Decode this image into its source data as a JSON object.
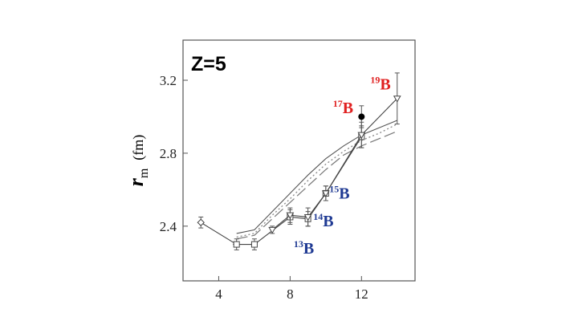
{
  "chart_data": {
    "type": "line",
    "panel_label": "Z=5",
    "ylabel": {
      "symbol": "r",
      "subscript": "m",
      "unit": "(fm)"
    },
    "xlim": [
      2,
      15
    ],
    "ylim": [
      2.1,
      3.42
    ],
    "xticks": [
      4,
      8,
      12
    ],
    "yticks": [
      2.4,
      2.8,
      3.2
    ],
    "grid": false,
    "series": [
      {
        "marker": "diamond",
        "points": [
          {
            "x": 3,
            "y": 2.42,
            "err": 0.03
          },
          {
            "x": 5,
            "y": 2.3
          }
        ]
      },
      {
        "marker": "square",
        "points": [
          {
            "x": 5,
            "y": 2.3,
            "err": 0.03
          },
          {
            "x": 6,
            "y": 2.3,
            "err": 0.03
          },
          {
            "x": 8,
            "y": 2.45,
            "err": 0.04
          },
          {
            "x": 9,
            "y": 2.44,
            "err": 0.04
          },
          {
            "x": 10,
            "y": 2.58,
            "err": 0.04
          },
          {
            "x": 12,
            "y": 2.89,
            "err": 0.06
          }
        ]
      },
      {
        "marker": "triangle",
        "points": [
          {
            "x": 7,
            "y": 2.38,
            "err": 0.02
          },
          {
            "x": 8,
            "y": 2.46,
            "err": 0.04
          },
          {
            "x": 9,
            "y": 2.45,
            "err": 0.05
          },
          {
            "x": 10,
            "y": 2.58,
            "err": 0.04
          },
          {
            "x": 12,
            "y": 2.9,
            "err": 0.07
          },
          {
            "x": 14,
            "y": 3.1,
            "err": 0.14
          }
        ]
      },
      {
        "marker": "filled-circle",
        "points": [
          {
            "x": 12,
            "y": 3.0,
            "err": 0.06
          }
        ]
      },
      {
        "style": "solid-theory",
        "points": [
          {
            "x": 5,
            "y": 2.36
          },
          {
            "x": 6,
            "y": 2.38
          },
          {
            "x": 7,
            "y": 2.48
          },
          {
            "x": 8,
            "y": 2.58
          },
          {
            "x": 9,
            "y": 2.68
          },
          {
            "x": 10,
            "y": 2.77
          },
          {
            "x": 11,
            "y": 2.84
          },
          {
            "x": 12,
            "y": 2.9
          },
          {
            "x": 13,
            "y": 2.94
          },
          {
            "x": 14,
            "y": 2.98
          }
        ]
      },
      {
        "style": "dashed-theory",
        "points": [
          {
            "x": 5,
            "y": 2.33
          },
          {
            "x": 6,
            "y": 2.35
          },
          {
            "x": 7,
            "y": 2.44
          },
          {
            "x": 8,
            "y": 2.53
          },
          {
            "x": 9,
            "y": 2.62
          },
          {
            "x": 10,
            "y": 2.71
          },
          {
            "x": 11,
            "y": 2.79
          },
          {
            "x": 12,
            "y": 2.84
          },
          {
            "x": 13,
            "y": 2.88
          },
          {
            "x": 14,
            "y": 2.92
          }
        ]
      },
      {
        "style": "dotted-theory",
        "points": [
          {
            "x": 5,
            "y": 2.34
          },
          {
            "x": 6,
            "y": 2.36
          },
          {
            "x": 7,
            "y": 2.46
          },
          {
            "x": 8,
            "y": 2.55
          },
          {
            "x": 9,
            "y": 2.65
          },
          {
            "x": 10,
            "y": 2.74
          },
          {
            "x": 11,
            "y": 2.81
          },
          {
            "x": 12,
            "y": 2.87
          },
          {
            "x": 13,
            "y": 2.91
          },
          {
            "x": 14,
            "y": 2.96
          }
        ]
      }
    ],
    "annotations": [
      {
        "mass": "13",
        "symbol": "B",
        "color": "#1f3a93",
        "x": 8.2,
        "y": 2.25
      },
      {
        "mass": "14",
        "symbol": "B",
        "color": "#1f3a93",
        "x": 9.3,
        "y": 2.4
      },
      {
        "mass": "15",
        "symbol": "B",
        "color": "#1f3a93",
        "x": 10.2,
        "y": 2.55
      },
      {
        "mass": "17",
        "symbol": "B",
        "color": "#e02020",
        "x": 10.4,
        "y": 3.02
      },
      {
        "mass": "19",
        "symbol": "B",
        "color": "#e02020",
        "x": 12.5,
        "y": 3.15
      }
    ]
  }
}
